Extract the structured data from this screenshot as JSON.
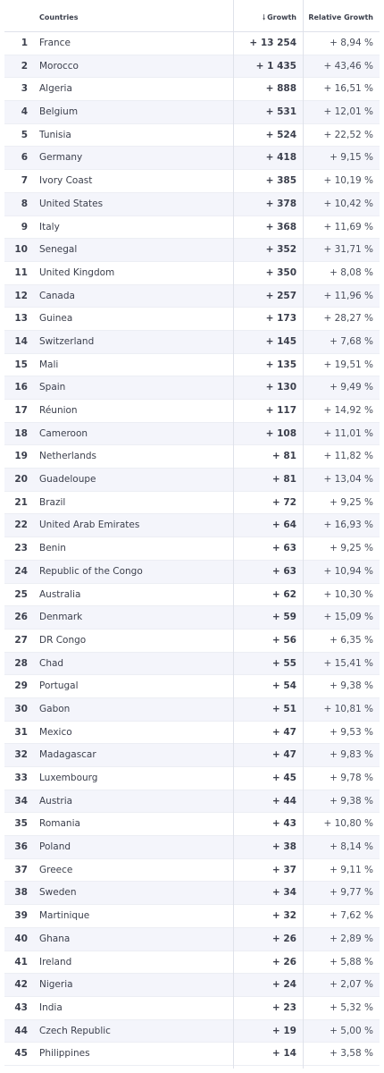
{
  "header": {
    "countries_label": "Countries",
    "growth_label": "Growth",
    "relative_growth_label": "Relative Growth",
    "sort_icon": "arrow-down-icon"
  },
  "rows": [
    {
      "rank": "1",
      "country": "France",
      "growth": "+ 13 254",
      "relative": "+ 8,94 %"
    },
    {
      "rank": "2",
      "country": "Morocco",
      "growth": "+ 1 435",
      "relative": "+ 43,46 %"
    },
    {
      "rank": "3",
      "country": "Algeria",
      "growth": "+ 888",
      "relative": "+ 16,51 %"
    },
    {
      "rank": "4",
      "country": "Belgium",
      "growth": "+ 531",
      "relative": "+ 12,01 %"
    },
    {
      "rank": "5",
      "country": "Tunisia",
      "growth": "+ 524",
      "relative": "+ 22,52 %"
    },
    {
      "rank": "6",
      "country": "Germany",
      "growth": "+ 418",
      "relative": "+ 9,15 %"
    },
    {
      "rank": "7",
      "country": "Ivory Coast",
      "growth": "+ 385",
      "relative": "+ 10,19 %"
    },
    {
      "rank": "8",
      "country": "United States",
      "growth": "+ 378",
      "relative": "+ 10,42 %"
    },
    {
      "rank": "9",
      "country": "Italy",
      "growth": "+ 368",
      "relative": "+ 11,69 %"
    },
    {
      "rank": "10",
      "country": "Senegal",
      "growth": "+ 352",
      "relative": "+ 31,71 %"
    },
    {
      "rank": "11",
      "country": "United Kingdom",
      "growth": "+ 350",
      "relative": "+ 8,08 %"
    },
    {
      "rank": "12",
      "country": "Canada",
      "growth": "+ 257",
      "relative": "+ 11,96 %"
    },
    {
      "rank": "13",
      "country": "Guinea",
      "growth": "+ 173",
      "relative": "+ 28,27 %"
    },
    {
      "rank": "14",
      "country": "Switzerland",
      "growth": "+ 145",
      "relative": "+ 7,68 %"
    },
    {
      "rank": "15",
      "country": "Mali",
      "growth": "+ 135",
      "relative": "+ 19,51 %"
    },
    {
      "rank": "16",
      "country": "Spain",
      "growth": "+ 130",
      "relative": "+ 9,49 %"
    },
    {
      "rank": "17",
      "country": "Réunion",
      "growth": "+ 117",
      "relative": "+ 14,92 %"
    },
    {
      "rank": "18",
      "country": "Cameroon",
      "growth": "+ 108",
      "relative": "+ 11,01 %"
    },
    {
      "rank": "19",
      "country": "Netherlands",
      "growth": "+ 81",
      "relative": "+ 11,82 %"
    },
    {
      "rank": "20",
      "country": "Guadeloupe",
      "growth": "+ 81",
      "relative": "+ 13,04 %"
    },
    {
      "rank": "21",
      "country": "Brazil",
      "growth": "+ 72",
      "relative": "+ 9,25 %"
    },
    {
      "rank": "22",
      "country": "United Arab Emirates",
      "growth": "+ 64",
      "relative": "+ 16,93 %"
    },
    {
      "rank": "23",
      "country": "Benin",
      "growth": "+ 63",
      "relative": "+ 9,25 %"
    },
    {
      "rank": "24",
      "country": "Republic of the Congo",
      "growth": "+ 63",
      "relative": "+ 10,94 %"
    },
    {
      "rank": "25",
      "country": "Australia",
      "growth": "+ 62",
      "relative": "+ 10,30 %"
    },
    {
      "rank": "26",
      "country": "Denmark",
      "growth": "+ 59",
      "relative": "+ 15,09 %"
    },
    {
      "rank": "27",
      "country": "DR Congo",
      "growth": "+ 56",
      "relative": "+ 6,35 %"
    },
    {
      "rank": "28",
      "country": "Chad",
      "growth": "+ 55",
      "relative": "+ 15,41 %"
    },
    {
      "rank": "29",
      "country": "Portugal",
      "growth": "+ 54",
      "relative": "+ 9,38 %"
    },
    {
      "rank": "30",
      "country": "Gabon",
      "growth": "+ 51",
      "relative": "+ 10,81 %"
    },
    {
      "rank": "31",
      "country": "Mexico",
      "growth": "+ 47",
      "relative": "+ 9,53 %"
    },
    {
      "rank": "32",
      "country": "Madagascar",
      "growth": "+ 47",
      "relative": "+ 9,83 %"
    },
    {
      "rank": "33",
      "country": "Luxembourg",
      "growth": "+ 45",
      "relative": "+ 9,78 %"
    },
    {
      "rank": "34",
      "country": "Austria",
      "growth": "+ 44",
      "relative": "+ 9,38 %"
    },
    {
      "rank": "35",
      "country": "Romania",
      "growth": "+ 43",
      "relative": "+ 10,80 %"
    },
    {
      "rank": "36",
      "country": "Poland",
      "growth": "+ 38",
      "relative": "+ 8,14 %"
    },
    {
      "rank": "37",
      "country": "Greece",
      "growth": "+ 37",
      "relative": "+ 9,11 %"
    },
    {
      "rank": "38",
      "country": "Sweden",
      "growth": "+ 34",
      "relative": "+ 9,77 %"
    },
    {
      "rank": "39",
      "country": "Martinique",
      "growth": "+ 32",
      "relative": "+ 7,62 %"
    },
    {
      "rank": "40",
      "country": "Ghana",
      "growth": "+ 26",
      "relative": "+ 2,89 %"
    },
    {
      "rank": "41",
      "country": "Ireland",
      "growth": "+ 26",
      "relative": "+ 5,88 %"
    },
    {
      "rank": "42",
      "country": "Nigeria",
      "growth": "+ 24",
      "relative": "+ 2,07 %"
    },
    {
      "rank": "43",
      "country": "India",
      "growth": "+ 23",
      "relative": "+ 5,32 %"
    },
    {
      "rank": "44",
      "country": "Czech Republic",
      "growth": "+ 19",
      "relative": "+ 5,00 %"
    },
    {
      "rank": "45",
      "country": "Philippines",
      "growth": "+ 14",
      "relative": "+ 3,58 %"
    }
  ],
  "colors": {
    "row_alt_background": "#f4f5fb",
    "grid_line": "#dfe2ea",
    "text": "#3b3f4c"
  }
}
